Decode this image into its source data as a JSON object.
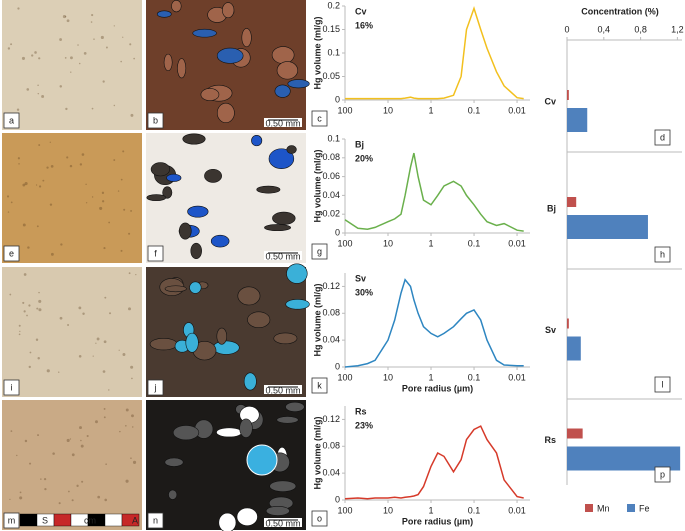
{
  "photos": [
    {
      "label": "a"
    },
    {
      "label": "b",
      "scale_text": "0.50 mm"
    },
    {
      "label": "e"
    },
    {
      "label": "f",
      "scale_text": "0.50 mm"
    },
    {
      "label": "i"
    },
    {
      "label": "j",
      "scale_text": "0.50 mm"
    },
    {
      "label": "m",
      "ruler_labels": [
        "S",
        "cm",
        "A"
      ]
    },
    {
      "label": "n",
      "scale_text": "0.50 mm"
    }
  ],
  "chart_data": [
    {
      "type": "line",
      "panel_label": "c",
      "annotations": [
        "Cv",
        "16%"
      ],
      "y_label": "Hg volume (ml/g)",
      "color": "#f2c01e",
      "xscale": "log",
      "xlim": [
        100,
        0.005
      ],
      "xticks": [
        100,
        10,
        1,
        0.1,
        0.01
      ],
      "ylim": [
        0,
        0.2
      ],
      "yticks": [
        0,
        0.05,
        0.1,
        0.15,
        0.2
      ],
      "x": [
        100,
        50,
        30,
        20,
        10,
        7,
        5,
        4,
        3,
        2.5,
        2,
        1.5,
        1,
        0.7,
        0.5,
        0.3,
        0.2,
        0.15,
        0.1,
        0.07,
        0.05,
        0.03,
        0.02,
        0.01,
        0.007
      ],
      "values": [
        0.003,
        0.003,
        0.003,
        0.003,
        0.003,
        0.003,
        0.003,
        0.004,
        0.006,
        0.004,
        0.003,
        0.003,
        0.003,
        0.003,
        0.004,
        0.01,
        0.05,
        0.15,
        0.195,
        0.15,
        0.11,
        0.06,
        0.03,
        0.005,
        0.003
      ]
    },
    {
      "type": "line",
      "panel_label": "g",
      "annotations": [
        "Bj",
        "20%"
      ],
      "y_label": "Hg volume (ml/g)",
      "color": "#6ab04c",
      "xscale": "log",
      "xlim": [
        100,
        0.005
      ],
      "xticks": [
        100,
        10,
        1,
        0.1,
        0.01
      ],
      "ylim": [
        0,
        0.1
      ],
      "yticks": [
        0,
        0.02,
        0.04,
        0.06,
        0.08,
        0.1
      ],
      "x": [
        100,
        50,
        30,
        20,
        10,
        7,
        5,
        4,
        3,
        2.5,
        2,
        1.5,
        1,
        0.7,
        0.5,
        0.3,
        0.2,
        0.15,
        0.1,
        0.07,
        0.05,
        0.03,
        0.02,
        0.01,
        0.007
      ],
      "values": [
        0.014,
        0.005,
        0.004,
        0.006,
        0.012,
        0.015,
        0.02,
        0.04,
        0.07,
        0.085,
        0.06,
        0.035,
        0.03,
        0.04,
        0.05,
        0.055,
        0.05,
        0.04,
        0.03,
        0.02,
        0.012,
        0.008,
        0.01,
        0.003,
        0.002
      ]
    },
    {
      "type": "line",
      "panel_label": "k",
      "annotations": [
        "Sv",
        "30%"
      ],
      "y_label": "Hg volume (ml/g)",
      "x_label": "Pore radius (µm)",
      "color": "#2e86c1",
      "xscale": "log",
      "xlim": [
        100,
        0.005
      ],
      "xticks": [
        100,
        10,
        1,
        0.1,
        0.01
      ],
      "ylim": [
        0,
        0.14
      ],
      "yticks": [
        0,
        0.04,
        0.08,
        0.12
      ],
      "x": [
        100,
        50,
        30,
        20,
        10,
        7,
        5,
        4,
        3,
        2.5,
        2,
        1.5,
        1,
        0.7,
        0.5,
        0.3,
        0.2,
        0.15,
        0.1,
        0.07,
        0.05,
        0.03,
        0.02,
        0.01,
        0.007
      ],
      "values": [
        0.0,
        0.002,
        0.005,
        0.01,
        0.04,
        0.07,
        0.11,
        0.13,
        0.12,
        0.1,
        0.08,
        0.06,
        0.05,
        0.045,
        0.05,
        0.06,
        0.072,
        0.08,
        0.085,
        0.07,
        0.04,
        0.01,
        0.003,
        0.002,
        0.002
      ]
    },
    {
      "type": "line",
      "panel_label": "o",
      "annotations": [
        "Rs",
        "23%"
      ],
      "y_label": "Hg volume (ml/g)",
      "x_label": "Pore radius (µm)",
      "color": "#d63a2a",
      "xscale": "log",
      "xlim": [
        100,
        0.005
      ],
      "xticks": [
        100,
        10,
        1,
        0.1,
        0.01
      ],
      "ylim": [
        0,
        0.14
      ],
      "yticks": [
        0,
        0.04,
        0.08,
        0.12
      ],
      "x": [
        100,
        50,
        30,
        20,
        10,
        7,
        5,
        4,
        3,
        2.5,
        2,
        1.5,
        1,
        0.7,
        0.5,
        0.3,
        0.2,
        0.15,
        0.1,
        0.07,
        0.05,
        0.03,
        0.02,
        0.01,
        0.007
      ],
      "values": [
        0.002,
        0.003,
        0.002,
        0.003,
        0.003,
        0.004,
        0.003,
        0.004,
        0.005,
        0.006,
        0.008,
        0.02,
        0.05,
        0.07,
        0.065,
        0.042,
        0.06,
        0.09,
        0.105,
        0.11,
        0.09,
        0.07,
        0.03,
        0.005,
        0.003
      ]
    },
    {
      "type": "hbar",
      "title": "Concentration (%)",
      "panel_labels": [
        "d",
        "h",
        "l",
        "p"
      ],
      "categories": [
        "Cv",
        "Bj",
        "Sv",
        "Rs"
      ],
      "series": [
        {
          "name": "Mn",
          "color": "#c0504d",
          "values": [
            0.02,
            0.1,
            0.02,
            0.17
          ]
        },
        {
          "name": "Fe",
          "color": "#4f81bd",
          "values": [
            0.22,
            0.88,
            0.15,
            1.23
          ]
        }
      ],
      "xlim": [
        0,
        1.25
      ],
      "xticks": [
        0,
        {
          "value": 0.4,
          "label": "0,4"
        },
        {
          "value": 0.8,
          "label": "0,8"
        },
        {
          "value": 1.2,
          "label": "1,2"
        }
      ]
    }
  ]
}
